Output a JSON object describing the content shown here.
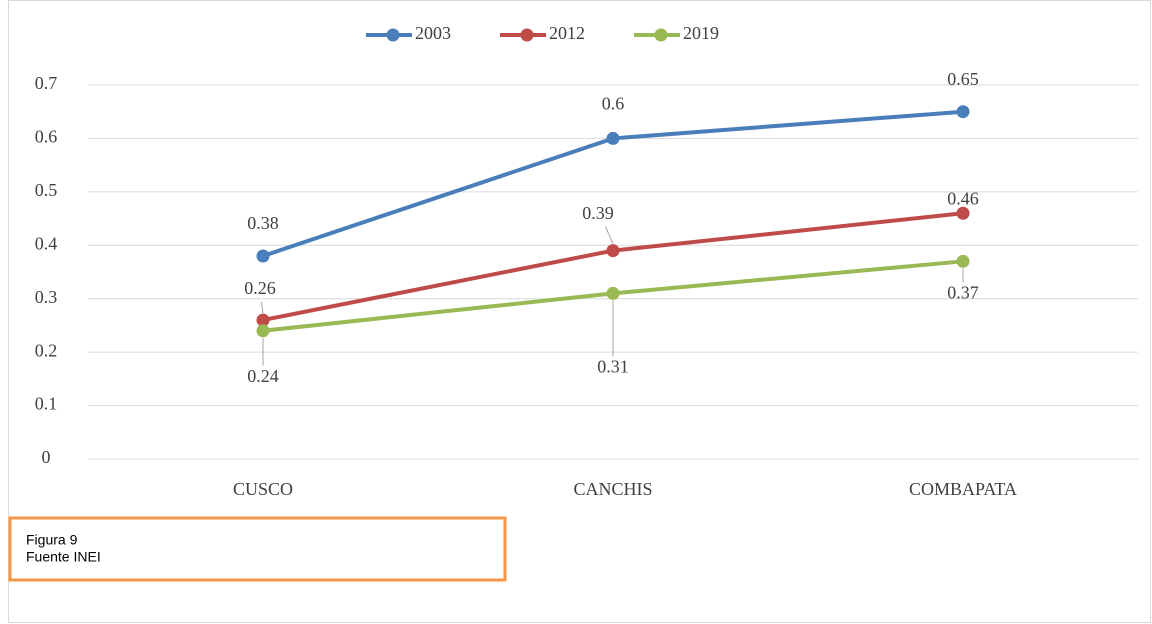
{
  "chart_data": {
    "type": "line",
    "categories": [
      "CUSCO",
      "CANCHIS",
      "COMBAPATA"
    ],
    "series": [
      {
        "name": "2003",
        "color": "#4a7ebb",
        "values": [
          0.38,
          0.6,
          0.65
        ]
      },
      {
        "name": "2012",
        "color": "#be4b48",
        "values": [
          0.26,
          0.39,
          0.46
        ]
      },
      {
        "name": "2019",
        "color": "#98b954",
        "values": [
          0.24,
          0.31,
          0.37
        ]
      }
    ],
    "ylim": [
      0,
      0.7
    ],
    "yticks": [
      0,
      0.1,
      0.2,
      0.3,
      0.4,
      0.5,
      0.6,
      0.7
    ],
    "grid": true,
    "legend": "top",
    "annotations": [
      "Figura 9",
      "Fuente INEI"
    ]
  }
}
